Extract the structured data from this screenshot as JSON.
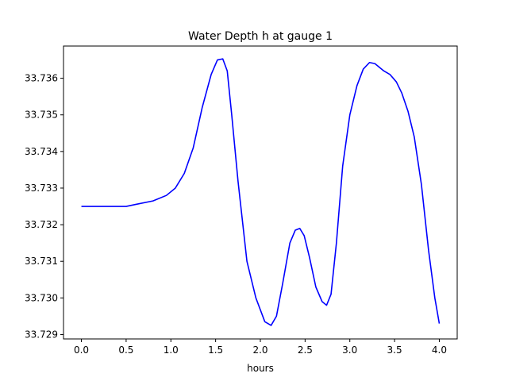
{
  "chart_data": {
    "type": "line",
    "title": "Water Depth h at gauge 1",
    "xlabel": "hours",
    "ylabel": "",
    "xlim": [
      -0.2,
      4.2
    ],
    "ylim": [
      33.72888,
      33.73688
    ],
    "xticks": [
      {
        "value": 0.0,
        "label": "0.0"
      },
      {
        "value": 0.5,
        "label": "0.5"
      },
      {
        "value": 1.0,
        "label": "1.0"
      },
      {
        "value": 1.5,
        "label": "1.5"
      },
      {
        "value": 2.0,
        "label": "2.0"
      },
      {
        "value": 2.5,
        "label": "2.5"
      },
      {
        "value": 3.0,
        "label": "3.0"
      },
      {
        "value": 3.5,
        "label": "3.5"
      },
      {
        "value": 4.0,
        "label": "4.0"
      }
    ],
    "yticks": [
      {
        "value": 33.729,
        "label": "33.729"
      },
      {
        "value": 33.73,
        "label": "33.730"
      },
      {
        "value": 33.731,
        "label": "33.731"
      },
      {
        "value": 33.732,
        "label": "33.732"
      },
      {
        "value": 33.733,
        "label": "33.733"
      },
      {
        "value": 33.734,
        "label": "33.734"
      },
      {
        "value": 33.735,
        "label": "33.735"
      },
      {
        "value": 33.736,
        "label": "33.736"
      }
    ],
    "grid": false,
    "series": [
      {
        "color": "#0000ff",
        "x": [
          0.0,
          0.25,
          0.5,
          0.6,
          0.8,
          0.95,
          1.05,
          1.15,
          1.25,
          1.35,
          1.45,
          1.52,
          1.58,
          1.63,
          1.68,
          1.75,
          1.85,
          1.95,
          2.05,
          2.12,
          2.18,
          2.25,
          2.33,
          2.39,
          2.44,
          2.49,
          2.55,
          2.62,
          2.69,
          2.74,
          2.79,
          2.85,
          2.92,
          3.0,
          3.08,
          3.15,
          3.22,
          3.28,
          3.33,
          3.38,
          3.45,
          3.52,
          3.58,
          3.65,
          3.72,
          3.8,
          3.88,
          3.95,
          4.0
        ],
        "y": [
          33.7325,
          33.7325,
          33.7325,
          33.73255,
          33.73265,
          33.7328,
          33.733,
          33.7334,
          33.7341,
          33.7352,
          33.7361,
          33.7365,
          33.73653,
          33.7362,
          33.735,
          33.7332,
          33.731,
          33.73,
          33.72935,
          33.72925,
          33.7295,
          33.7304,
          33.7315,
          33.73185,
          33.7319,
          33.7317,
          33.7311,
          33.7303,
          33.7299,
          33.7298,
          33.7301,
          33.7315,
          33.7336,
          33.735,
          33.7358,
          33.73625,
          33.73643,
          33.7364,
          33.7363,
          33.7362,
          33.7361,
          33.7359,
          33.7356,
          33.7351,
          33.7344,
          33.7331,
          33.7313,
          33.73,
          33.7293
        ]
      }
    ]
  }
}
